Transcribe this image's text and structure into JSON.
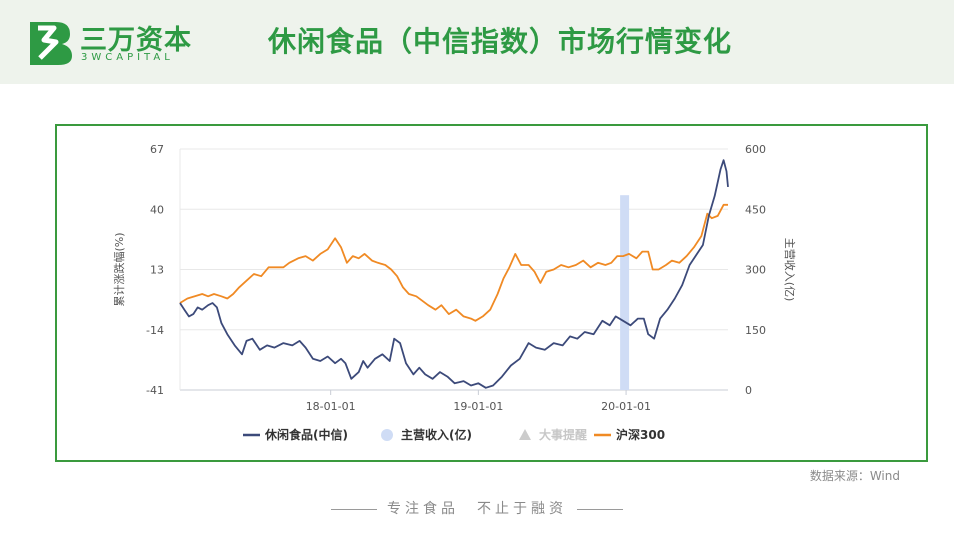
{
  "brand": {
    "name_cn": "三万资本",
    "name_en": "3WCAPITAL"
  },
  "page_title": "休闲食品（中信指数）市场行情变化",
  "source_note": "数据来源：Wind",
  "footer_slogan": "专注食品　不止于融资",
  "colors": {
    "brand_green": "#2e9a44",
    "leisure_food": "#3c4a7a",
    "csi300": "#f08a24",
    "revenue": "#cfdcf5",
    "events": "#cccccc"
  },
  "chart_data": {
    "type": "line",
    "ylabel": "累计涨跌幅(%)",
    "y2label": "主营收入(亿)",
    "ylim": [
      -41,
      67
    ],
    "y2lim": [
      0,
      600
    ],
    "yticks": [
      "67",
      "40",
      "13",
      "-14",
      "-41"
    ],
    "y2ticks": [
      "600",
      "450",
      "300",
      "150",
      "0"
    ],
    "xticks": [
      "18-01-01",
      "19-01-01",
      "20-01-01"
    ],
    "xticks_t": [
      2018.0,
      2019.0,
      2020.0
    ],
    "xlim": [
      2016.98,
      2020.69
    ],
    "legend": [
      {
        "name": "休闲食品(中信)",
        "marker": "line",
        "color": "#3c4a7a"
      },
      {
        "name": "主营收入(亿)",
        "marker": "circle",
        "color": "#cfdcf5"
      },
      {
        "name": "大事提醒",
        "marker": "triangle",
        "color": "#cccccc"
      },
      {
        "name": "沪深300",
        "marker": "line",
        "color": "#f08a24"
      }
    ],
    "revenue_bar": {
      "x": 2019.99,
      "value": 485
    },
    "series": [
      {
        "name": "休闲食品(中信)",
        "axis": "left",
        "color": "#3c4a7a",
        "points": [
          [
            2016.98,
            -2
          ],
          [
            2017.01,
            -5
          ],
          [
            2017.04,
            -8
          ],
          [
            2017.07,
            -7
          ],
          [
            2017.1,
            -4
          ],
          [
            2017.13,
            -5
          ],
          [
            2017.17,
            -3
          ],
          [
            2017.2,
            -2
          ],
          [
            2017.23,
            -4
          ],
          [
            2017.26,
            -11
          ],
          [
            2017.3,
            -16
          ],
          [
            2017.35,
            -21
          ],
          [
            2017.4,
            -25
          ],
          [
            2017.43,
            -19
          ],
          [
            2017.47,
            -18
          ],
          [
            2017.52,
            -23
          ],
          [
            2017.57,
            -21
          ],
          [
            2017.62,
            -22
          ],
          [
            2017.68,
            -20
          ],
          [
            2017.74,
            -21
          ],
          [
            2017.79,
            -19
          ],
          [
            2017.83,
            -22
          ],
          [
            2017.88,
            -27
          ],
          [
            2017.93,
            -28
          ],
          [
            2017.98,
            -26
          ],
          [
            2018.03,
            -29
          ],
          [
            2018.07,
            -27
          ],
          [
            2018.1,
            -29
          ],
          [
            2018.14,
            -36
          ],
          [
            2018.19,
            -33
          ],
          [
            2018.22,
            -28
          ],
          [
            2018.25,
            -31
          ],
          [
            2018.3,
            -27
          ],
          [
            2018.35,
            -25
          ],
          [
            2018.4,
            -28
          ],
          [
            2018.43,
            -18
          ],
          [
            2018.47,
            -20
          ],
          [
            2018.51,
            -29
          ],
          [
            2018.56,
            -34
          ],
          [
            2018.6,
            -31
          ],
          [
            2018.64,
            -34
          ],
          [
            2018.69,
            -36
          ],
          [
            2018.74,
            -33
          ],
          [
            2018.79,
            -35
          ],
          [
            2018.84,
            -38
          ],
          [
            2018.9,
            -37
          ],
          [
            2018.95,
            -39
          ],
          [
            2019.0,
            -38
          ],
          [
            2019.05,
            -40
          ],
          [
            2019.1,
            -39
          ],
          [
            2019.16,
            -35
          ],
          [
            2019.22,
            -30
          ],
          [
            2019.28,
            -27
          ],
          [
            2019.34,
            -20
          ],
          [
            2019.39,
            -22
          ],
          [
            2019.45,
            -23
          ],
          [
            2019.51,
            -20
          ],
          [
            2019.57,
            -21
          ],
          [
            2019.62,
            -17
          ],
          [
            2019.67,
            -18
          ],
          [
            2019.72,
            -15
          ],
          [
            2019.78,
            -16
          ],
          [
            2019.84,
            -10
          ],
          [
            2019.89,
            -12
          ],
          [
            2019.93,
            -8
          ],
          [
            2019.98,
            -10
          ],
          [
            2020.03,
            -12
          ],
          [
            2020.08,
            -9
          ],
          [
            2020.12,
            -9
          ],
          [
            2020.15,
            -16
          ],
          [
            2020.19,
            -18
          ],
          [
            2020.23,
            -9
          ],
          [
            2020.28,
            -5
          ],
          [
            2020.33,
            0
          ],
          [
            2020.38,
            6
          ],
          [
            2020.43,
            15
          ],
          [
            2020.47,
            19
          ],
          [
            2020.52,
            24
          ],
          [
            2020.56,
            37
          ],
          [
            2020.6,
            46
          ],
          [
            2020.64,
            58
          ],
          [
            2020.66,
            62
          ],
          [
            2020.68,
            57
          ],
          [
            2020.69,
            50
          ]
        ]
      },
      {
        "name": "沪深300",
        "axis": "left",
        "color": "#f08a24",
        "points": [
          [
            2016.98,
            -2
          ],
          [
            2017.03,
            0
          ],
          [
            2017.08,
            1
          ],
          [
            2017.13,
            2
          ],
          [
            2017.17,
            1
          ],
          [
            2017.21,
            2
          ],
          [
            2017.26,
            1
          ],
          [
            2017.3,
            0
          ],
          [
            2017.34,
            2
          ],
          [
            2017.38,
            5
          ],
          [
            2017.43,
            8
          ],
          [
            2017.48,
            11
          ],
          [
            2017.53,
            10
          ],
          [
            2017.58,
            14
          ],
          [
            2017.63,
            14
          ],
          [
            2017.68,
            14
          ],
          [
            2017.72,
            16
          ],
          [
            2017.78,
            18
          ],
          [
            2017.83,
            19
          ],
          [
            2017.88,
            17
          ],
          [
            2017.93,
            20
          ],
          [
            2017.98,
            22
          ],
          [
            2018.03,
            27
          ],
          [
            2018.07,
            23
          ],
          [
            2018.11,
            16
          ],
          [
            2018.15,
            19
          ],
          [
            2018.19,
            18
          ],
          [
            2018.23,
            20
          ],
          [
            2018.28,
            17
          ],
          [
            2018.32,
            16
          ],
          [
            2018.37,
            15
          ],
          [
            2018.41,
            13
          ],
          [
            2018.45,
            10
          ],
          [
            2018.49,
            5
          ],
          [
            2018.53,
            2
          ],
          [
            2018.58,
            1
          ],
          [
            2018.62,
            -1
          ],
          [
            2018.66,
            -3
          ],
          [
            2018.71,
            -5
          ],
          [
            2018.75,
            -3
          ],
          [
            2018.8,
            -7
          ],
          [
            2018.85,
            -5
          ],
          [
            2018.9,
            -8
          ],
          [
            2018.95,
            -9
          ],
          [
            2018.98,
            -10
          ],
          [
            2019.03,
            -8
          ],
          [
            2019.08,
            -5
          ],
          [
            2019.13,
            2
          ],
          [
            2019.17,
            9
          ],
          [
            2019.21,
            14
          ],
          [
            2019.25,
            20
          ],
          [
            2019.29,
            15
          ],
          [
            2019.34,
            15
          ],
          [
            2019.38,
            12
          ],
          [
            2019.42,
            7
          ],
          [
            2019.46,
            12
          ],
          [
            2019.51,
            13
          ],
          [
            2019.56,
            15
          ],
          [
            2019.61,
            14
          ],
          [
            2019.66,
            15
          ],
          [
            2019.71,
            17
          ],
          [
            2019.76,
            14
          ],
          [
            2019.81,
            16
          ],
          [
            2019.86,
            15
          ],
          [
            2019.9,
            16
          ],
          [
            2019.94,
            19
          ],
          [
            2019.98,
            19
          ],
          [
            2020.02,
            20
          ],
          [
            2020.07,
            18
          ],
          [
            2020.11,
            21
          ],
          [
            2020.15,
            21
          ],
          [
            2020.18,
            13
          ],
          [
            2020.22,
            13
          ],
          [
            2020.27,
            15
          ],
          [
            2020.31,
            17
          ],
          [
            2020.36,
            16
          ],
          [
            2020.41,
            19
          ],
          [
            2020.46,
            23
          ],
          [
            2020.51,
            28
          ],
          [
            2020.55,
            38
          ],
          [
            2020.58,
            36
          ],
          [
            2020.62,
            37
          ],
          [
            2020.66,
            42
          ],
          [
            2020.69,
            42
          ]
        ]
      }
    ]
  }
}
